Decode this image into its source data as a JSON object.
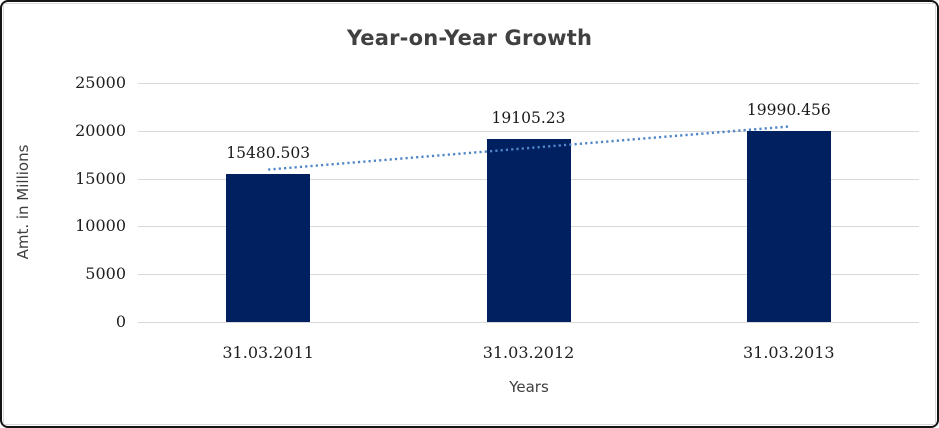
{
  "chart_data": {
    "type": "bar",
    "title": "Year-on-Year Growth",
    "categories": [
      "31.03.2011",
      "31.03.2012",
      "31.03.2013"
    ],
    "values": [
      15480.503,
      19105.23,
      19990.456
    ],
    "data_labels": [
      "15480.503",
      "19105.23",
      "19990.456"
    ],
    "xlabel": "Years",
    "ylabel": "Amt. in Millions",
    "ylim": [
      0,
      25000
    ],
    "yticks": [
      0,
      5000,
      10000,
      15000,
      20000,
      25000
    ],
    "grid": true,
    "legend": "none",
    "bar_color": "#002060",
    "gridline_color": "#d9d9d9",
    "trendline": {
      "type": "linear",
      "style": "dotted",
      "color": "#4f86c8"
    },
    "title_color": "#404040",
    "label_color": "#1a1a1a",
    "axis_title_color": "#3f3f3f"
  }
}
